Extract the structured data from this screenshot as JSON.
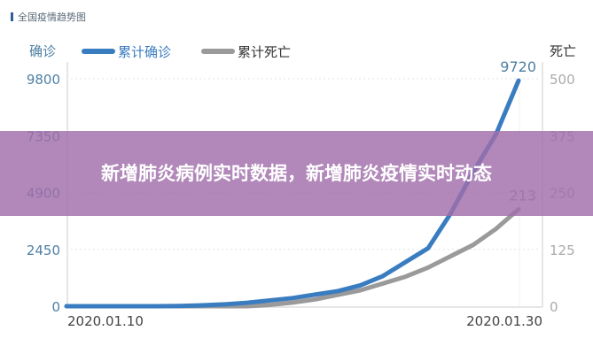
{
  "header": {
    "title": "全国疫情趋势图"
  },
  "banner": {
    "text": "新增肺炎病例实时数据，新增肺炎疫情实时动态"
  },
  "chart_data": {
    "type": "line",
    "x": [
      "2020.01.10",
      "2020.01.11",
      "2020.01.12",
      "2020.01.13",
      "2020.01.14",
      "2020.01.15",
      "2020.01.16",
      "2020.01.17",
      "2020.01.18",
      "2020.01.19",
      "2020.01.20",
      "2020.01.21",
      "2020.01.22",
      "2020.01.23",
      "2020.01.24",
      "2020.01.25",
      "2020.01.26",
      "2020.01.27",
      "2020.01.28",
      "2020.01.29",
      "2020.01.30"
    ],
    "x_tick_labels": [
      "2020.01.10",
      "2020.01.30"
    ],
    "ylabel": "确诊",
    "ylabel_right": "死亡",
    "ylim": [
      0,
      9800
    ],
    "ylim_right": [
      0,
      500
    ],
    "yticks": [
      "0",
      "2450",
      "4900",
      "7350",
      "9800"
    ],
    "yticks_right": [
      "0",
      "125",
      "250",
      "375",
      "500"
    ],
    "grid": true,
    "legend": "top-left",
    "series": [
      {
        "name": "累计确诊",
        "axis": "left",
        "color": "#3a7cc0",
        "values": [
          0,
          0,
          0,
          0,
          0,
          10,
          40,
          80,
          150,
          250,
          350,
          500,
          650,
          900,
          1300,
          1900,
          2500,
          4000,
          5800,
          7400,
          9720
        ],
        "end_label": "9720"
      },
      {
        "name": "累计死亡",
        "axis": "right",
        "color": "#9a9a9a",
        "values": [
          0,
          0,
          0,
          0,
          0,
          0,
          0,
          0,
          0,
          3,
          8,
          15,
          25,
          35,
          50,
          65,
          85,
          110,
          135,
          170,
          213
        ],
        "end_label": "213"
      }
    ]
  }
}
